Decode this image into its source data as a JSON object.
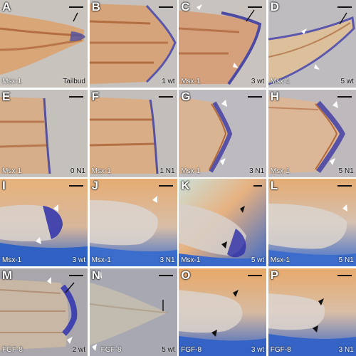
{
  "panels": [
    {
      "letter": "A",
      "stain": "Msx-1",
      "stage": "Tailbud"
    },
    {
      "letter": "B",
      "stain": "",
      "stage": "1 wt"
    },
    {
      "letter": "C",
      "stain": "Msx-1",
      "stage": "3 wt"
    },
    {
      "letter": "D",
      "stain": "Msx-1",
      "stage": "5 wt"
    },
    {
      "letter": "E",
      "stain": "Msx-1",
      "stage": "0 N1"
    },
    {
      "letter": "F",
      "stain": "Msx-1",
      "stage": "1 N1"
    },
    {
      "letter": "G",
      "stain": "Msx-1",
      "stage": "3 N1"
    },
    {
      "letter": "H",
      "stain": "Msx-1",
      "stage": "5 N1"
    },
    {
      "letter": "I",
      "stain": "Msx-1",
      "stage": "3 wt"
    },
    {
      "letter": "J",
      "stain": "Msx-1",
      "stage": "3 N1"
    },
    {
      "letter": "K",
      "stain": "Msx-1",
      "stage": "5 wt"
    },
    {
      "letter": "L",
      "stain": "Msx-1",
      "stage": "5 N1"
    },
    {
      "letter": "M",
      "stain": "FGF-8",
      "stage": "2 wt"
    },
    {
      "letter": "N",
      "stain": "FGF-8",
      "stage": "5 wt"
    },
    {
      "letter": "O",
      "stain": "FGF-8",
      "stage": "3 wt"
    },
    {
      "letter": "P",
      "stain": "FGF-8",
      "stage": "3 N1"
    }
  ]
}
